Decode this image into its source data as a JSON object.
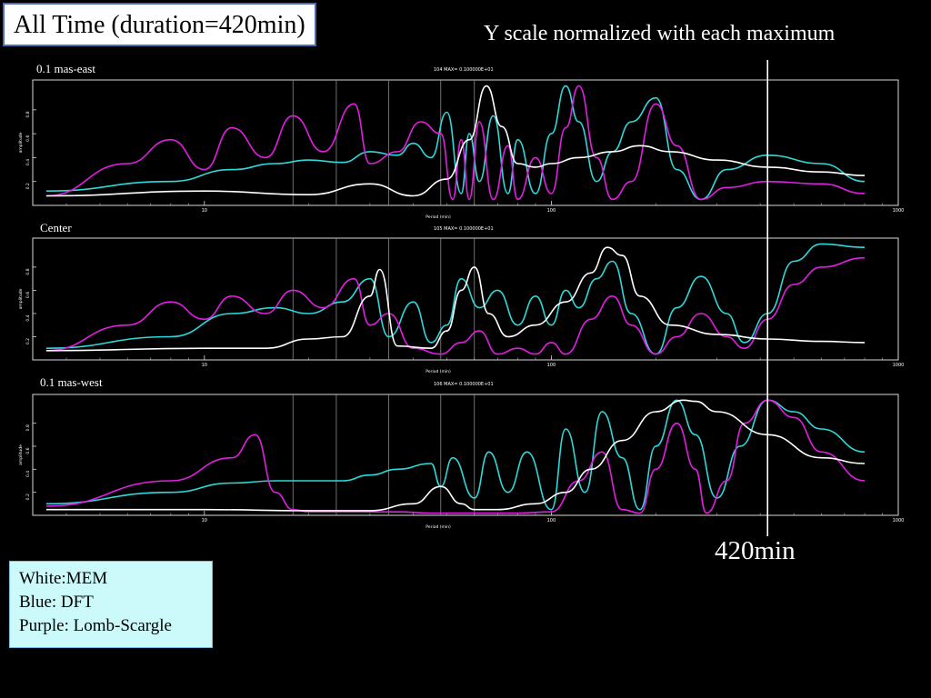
{
  "title": "All Time (duration=420min)",
  "subtitle": "Y scale normalized with each maximum",
  "marker_label": "420min",
  "legend": [
    "White:MEM",
    "Blue: DFT",
    "Purple: Lomb-Scargle"
  ],
  "colors": {
    "mem": "#ffffff",
    "dft": "#2fd8da",
    "lomb": "#e21ee2",
    "background": "#000000"
  },
  "chart_data": [
    {
      "type": "line",
      "title": "0.1 mas-east",
      "header_text": "104  MAX=   0.100000E+01",
      "xlabel": "Period (min)",
      "ylabel": "amplitude",
      "xscale": "log",
      "xlim": [
        3.2,
        1000
      ],
      "ylim": [
        0,
        1.05
      ],
      "xticks": [
        10,
        100,
        1000
      ],
      "yticks": [
        0.2,
        0.4,
        0.6,
        0.8
      ],
      "vertical_lines": [
        18,
        24,
        34,
        48,
        60
      ],
      "marker_period": 420,
      "series": [
        {
          "name": "MEM",
          "x": [
            3.5,
            10,
            20,
            30,
            40,
            50,
            58,
            65,
            72,
            80,
            90,
            100,
            120,
            150,
            180,
            220,
            300,
            420,
            600,
            800
          ],
          "y": [
            0.08,
            0.12,
            0.09,
            0.18,
            0.08,
            0.22,
            0.55,
            1.0,
            0.66,
            0.35,
            0.32,
            0.35,
            0.4,
            0.45,
            0.5,
            0.45,
            0.38,
            0.32,
            0.28,
            0.25
          ]
        },
        {
          "name": "DFT",
          "x": [
            3.5,
            8,
            12,
            16,
            20,
            25,
            30,
            36,
            40,
            45,
            50,
            55,
            58,
            62,
            68,
            75,
            80,
            90,
            100,
            110,
            120,
            135,
            150,
            170,
            200,
            230,
            270,
            320,
            420,
            600,
            800
          ],
          "y": [
            0.12,
            0.2,
            0.3,
            0.35,
            0.38,
            0.36,
            0.45,
            0.42,
            0.52,
            0.4,
            0.78,
            0.1,
            0.6,
            0.2,
            0.75,
            0.1,
            0.55,
            0.1,
            0.6,
            1.0,
            0.7,
            0.2,
            0.45,
            0.7,
            0.9,
            0.3,
            0.05,
            0.3,
            0.42,
            0.35,
            0.2
          ]
        },
        {
          "name": "Lomb-Scargle",
          "x": [
            3.5,
            6,
            8,
            10,
            12,
            15,
            18,
            22,
            27,
            30,
            36,
            42,
            48,
            52,
            55,
            58,
            62,
            68,
            75,
            80,
            90,
            100,
            110,
            120,
            135,
            150,
            170,
            200,
            230,
            270,
            320,
            420,
            600,
            800
          ],
          "y": [
            0.08,
            0.35,
            0.55,
            0.3,
            0.65,
            0.4,
            0.75,
            0.45,
            0.85,
            0.35,
            0.45,
            0.7,
            0.6,
            0.05,
            0.55,
            0.05,
            0.7,
            0.05,
            0.5,
            0.05,
            0.4,
            0.1,
            0.65,
            1.0,
            0.4,
            0.05,
            0.2,
            0.85,
            0.5,
            0.05,
            0.15,
            0.2,
            0.18,
            0.1
          ]
        }
      ]
    },
    {
      "type": "line",
      "title": "Center",
      "header_text": "105  MAX=   0.100000E+01",
      "xlabel": "Period (min)",
      "ylabel": "amplitude",
      "xscale": "log",
      "xlim": [
        3.2,
        1000
      ],
      "ylim": [
        0,
        1.05
      ],
      "xticks": [
        10,
        100,
        1000
      ],
      "yticks": [
        0.2,
        0.4,
        0.6,
        0.8
      ],
      "vertical_lines": [
        18,
        24,
        34,
        48,
        60
      ],
      "marker_period": 420,
      "series": [
        {
          "name": "MEM",
          "x": [
            3.5,
            10,
            15,
            20,
            25,
            30,
            32,
            36,
            45,
            50,
            55,
            60,
            66,
            75,
            90,
            110,
            130,
            145,
            160,
            180,
            220,
            300,
            420,
            600,
            800
          ],
          "y": [
            0.08,
            0.1,
            0.1,
            0.18,
            0.2,
            0.55,
            0.78,
            0.12,
            0.1,
            0.25,
            0.6,
            0.8,
            0.4,
            0.2,
            0.3,
            0.5,
            0.75,
            0.97,
            0.9,
            0.55,
            0.3,
            0.22,
            0.18,
            0.16,
            0.15
          ]
        },
        {
          "name": "DFT",
          "x": [
            3.5,
            8,
            12,
            16,
            20,
            25,
            30,
            34,
            40,
            45,
            50,
            55,
            62,
            70,
            80,
            90,
            100,
            110,
            120,
            135,
            150,
            170,
            200,
            230,
            270,
            320,
            360,
            420,
            500,
            600,
            800
          ],
          "y": [
            0.1,
            0.2,
            0.4,
            0.45,
            0.4,
            0.5,
            0.7,
            0.2,
            0.5,
            0.15,
            0.3,
            0.7,
            0.45,
            0.6,
            0.3,
            0.55,
            0.3,
            0.6,
            0.45,
            0.7,
            0.85,
            0.4,
            0.05,
            0.45,
            0.72,
            0.4,
            0.15,
            0.4,
            0.85,
            1.0,
            0.97
          ]
        },
        {
          "name": "Lomb-Scargle",
          "x": [
            3.5,
            6,
            8,
            10,
            12,
            15,
            18,
            22,
            27,
            30,
            34,
            40,
            48,
            55,
            62,
            70,
            80,
            90,
            100,
            110,
            130,
            150,
            170,
            200,
            230,
            270,
            320,
            360,
            420,
            500,
            600,
            800
          ],
          "y": [
            0.08,
            0.3,
            0.5,
            0.35,
            0.55,
            0.4,
            0.6,
            0.45,
            0.7,
            0.3,
            0.4,
            0.1,
            0.05,
            0.15,
            0.25,
            0.05,
            0.1,
            0.05,
            0.15,
            0.05,
            0.35,
            0.55,
            0.3,
            0.05,
            0.2,
            0.4,
            0.2,
            0.1,
            0.35,
            0.65,
            0.8,
            0.88
          ]
        }
      ]
    },
    {
      "type": "line",
      "title": "0.1 mas-west",
      "header_text": "106  MAX=   0.100000E+01",
      "xlabel": "Period (min)",
      "ylabel": "amplitude",
      "xscale": "log",
      "xlim": [
        3.2,
        1000
      ],
      "ylim": [
        0,
        1.05
      ],
      "xticks": [
        10,
        100,
        1000
      ],
      "yticks": [
        0.2,
        0.4,
        0.6,
        0.8
      ],
      "vertical_lines": [
        18,
        24,
        34,
        48,
        60
      ],
      "marker_period": 420,
      "series": [
        {
          "name": "MEM",
          "x": [
            3.5,
            10,
            20,
            30,
            40,
            48,
            55,
            60,
            70,
            90,
            110,
            130,
            160,
            200,
            240,
            260,
            300,
            420,
            600,
            800
          ],
          "y": [
            0.05,
            0.05,
            0.04,
            0.04,
            0.1,
            0.25,
            0.1,
            0.05,
            0.05,
            0.1,
            0.2,
            0.4,
            0.65,
            0.9,
            1.0,
            0.99,
            0.9,
            0.7,
            0.5,
            0.45
          ]
        },
        {
          "name": "DFT",
          "x": [
            3.5,
            8,
            12,
            16,
            20,
            25,
            30,
            36,
            45,
            48,
            52,
            60,
            66,
            75,
            85,
            100,
            110,
            125,
            140,
            160,
            180,
            200,
            230,
            260,
            300,
            350,
            420,
            500,
            600,
            800
          ],
          "y": [
            0.1,
            0.2,
            0.28,
            0.3,
            0.3,
            0.3,
            0.35,
            0.4,
            0.45,
            0.25,
            0.5,
            0.15,
            0.55,
            0.2,
            0.55,
            0.05,
            0.75,
            0.2,
            0.9,
            0.5,
            0.05,
            0.6,
            1.0,
            0.7,
            0.15,
            0.6,
            1.0,
            0.9,
            0.75,
            0.55
          ]
        },
        {
          "name": "Lomb-Scargle",
          "x": [
            3.5,
            8,
            12,
            14,
            16,
            18,
            20,
            24,
            30,
            36,
            45,
            60,
            80,
            100,
            120,
            140,
            160,
            180,
            200,
            230,
            260,
            280,
            320,
            360,
            420,
            500,
            600,
            800
          ],
          "y": [
            0.08,
            0.3,
            0.5,
            0.7,
            0.2,
            0.05,
            0.03,
            0.03,
            0.03,
            0.03,
            0.02,
            0.02,
            0.02,
            0.03,
            0.3,
            0.55,
            0.05,
            0.02,
            0.4,
            0.8,
            0.4,
            0.02,
            0.3,
            0.8,
            1.0,
            0.85,
            0.55,
            0.3
          ]
        }
      ]
    }
  ]
}
